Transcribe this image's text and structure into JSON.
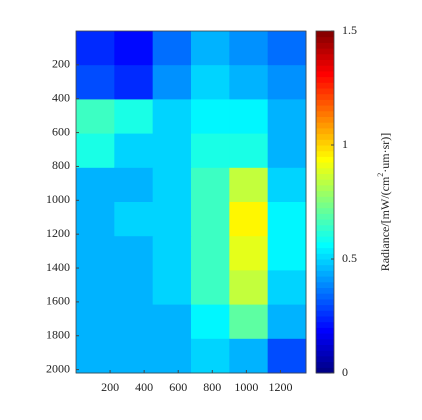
{
  "chart_data": {
    "type": "heatmap",
    "colormap": "jet",
    "x_bins": [
      0,
      225,
      450,
      675,
      900,
      1125,
      1350
    ],
    "y_bins": [
      0,
      202,
      404,
      606,
      808,
      1010,
      1212,
      1414,
      1616,
      1818,
      2020
    ],
    "values": [
      [
        0.25,
        0.2,
        0.35,
        0.45,
        0.4,
        0.35
      ],
      [
        0.3,
        0.25,
        0.4,
        0.5,
        0.45,
        0.4
      ],
      [
        0.65,
        0.6,
        0.5,
        0.55,
        0.55,
        0.45
      ],
      [
        0.6,
        0.5,
        0.5,
        0.6,
        0.6,
        0.45
      ],
      [
        0.45,
        0.45,
        0.5,
        0.65,
        0.85,
        0.5
      ],
      [
        0.45,
        0.5,
        0.5,
        0.65,
        0.95,
        0.55
      ],
      [
        0.45,
        0.45,
        0.5,
        0.65,
        0.9,
        0.55
      ],
      [
        0.45,
        0.45,
        0.5,
        0.65,
        0.85,
        0.5
      ],
      [
        0.45,
        0.45,
        0.45,
        0.55,
        0.7,
        0.45
      ],
      [
        0.45,
        0.45,
        0.45,
        0.5,
        0.45,
        0.3
      ]
    ],
    "xlim": [
      0,
      1350
    ],
    "xticks": [
      200,
      400,
      600,
      800,
      1000,
      1200
    ],
    "ylim": [
      0,
      2020
    ],
    "yticks": [
      200,
      400,
      600,
      800,
      1000,
      1200,
      1400,
      1600,
      1800,
      2000
    ],
    "clim": [
      0,
      1.5
    ],
    "cticks": [
      0,
      0.5,
      1,
      1.5
    ],
    "colorbar_label": [
      "Radiance/[mW/(cm",
      "2",
      "·um·sr)]"
    ]
  }
}
